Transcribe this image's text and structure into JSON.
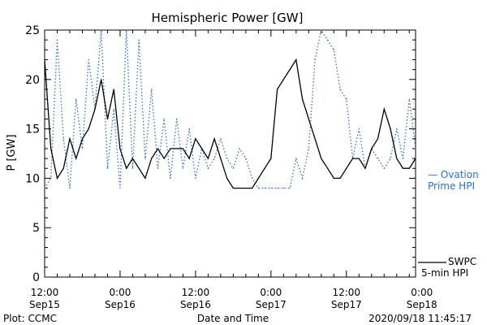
{
  "chart_data": {
    "type": "line",
    "title": "Hemispheric Power [GW]",
    "ylabel": "P [GW]",
    "xlabel": "Date and Time",
    "ylim": [
      0,
      25
    ],
    "yticks": [
      0,
      5,
      10,
      15,
      20,
      25
    ],
    "xlim": [
      0,
      59
    ],
    "xticks": [
      {
        "x": 0,
        "top": "12:00",
        "bottom": "Sep15"
      },
      {
        "x": 12,
        "top": "0:00",
        "bottom": "Sep16"
      },
      {
        "x": 24,
        "top": "12:00",
        "bottom": "Sep16"
      },
      {
        "x": 36,
        "top": "0:00",
        "bottom": "Sep17"
      },
      {
        "x": 48,
        "top": "12:00",
        "bottom": "Sep17"
      },
      {
        "x": 60,
        "top": "0:00",
        "bottom": "Sep18"
      }
    ],
    "x_unit": "hours since Sep15 12:00",
    "grid": false,
    "series": [
      {
        "name": "Ovation Prime HPI",
        "label_lines": [
          "— Ovation",
          "Prime HPI"
        ],
        "color": "#2a6fd6",
        "style": "dotted",
        "x": [
          0,
          1,
          2,
          3,
          4,
          5,
          6,
          7,
          8,
          9,
          10,
          11,
          12,
          13,
          14,
          15,
          16,
          17,
          18,
          19,
          20,
          21,
          22,
          23,
          24,
          25,
          26,
          27,
          28,
          29,
          30,
          31,
          32,
          33,
          34,
          35,
          36,
          37,
          38,
          39,
          40,
          41,
          42,
          43,
          44,
          45,
          46,
          47,
          48,
          49,
          50,
          51,
          52,
          53,
          54,
          55,
          56,
          57,
          58,
          59
        ],
        "values": [
          9,
          10,
          24,
          14,
          9,
          18,
          13,
          22,
          17,
          25,
          11,
          17,
          9,
          25,
          11,
          24,
          12,
          19,
          11,
          16,
          10,
          16,
          11,
          15,
          10,
          13,
          11,
          12,
          14,
          12,
          11,
          13,
          12,
          10,
          9,
          9,
          9,
          9,
          9,
          9,
          12,
          10,
          13,
          22,
          25,
          24,
          23,
          19,
          18,
          12,
          15,
          11,
          13,
          12,
          11,
          12,
          15,
          12,
          18,
          13
        ]
      },
      {
        "name": "SWPC 5-min HPI",
        "label_lines": [
          "SWPC",
          "5-min HPI"
        ],
        "color": "#000000",
        "style": "solid",
        "x": [
          0,
          1,
          2,
          3,
          4,
          5,
          6,
          7,
          8,
          9,
          10,
          11,
          12,
          13,
          14,
          15,
          16,
          17,
          18,
          19,
          20,
          21,
          22,
          23,
          24,
          25,
          26,
          27,
          28,
          29,
          30,
          31,
          32,
          33,
          34,
          35,
          36,
          37,
          38,
          39,
          40,
          41,
          42,
          43,
          44,
          45,
          46,
          47,
          48,
          49,
          50,
          51,
          52,
          53,
          54,
          55,
          56,
          57,
          58,
          59
        ],
        "values": [
          22,
          13,
          10,
          11,
          14,
          12,
          14,
          15,
          17,
          20,
          16,
          19,
          13,
          11,
          12,
          11,
          10,
          12,
          13,
          12,
          13,
          13,
          13,
          12,
          14,
          13,
          12,
          14,
          12,
          10,
          9,
          9,
          9,
          9,
          10,
          11,
          12,
          19,
          20,
          21,
          22,
          18,
          16,
          14,
          12,
          11,
          10,
          10,
          11,
          12,
          12,
          11,
          13,
          14,
          17,
          15,
          12,
          11,
          11,
          12
        ]
      }
    ],
    "footer": {
      "left": "Plot: CCMC",
      "center": "Date and Time",
      "right": "2020/09/18 11:45:17"
    }
  }
}
